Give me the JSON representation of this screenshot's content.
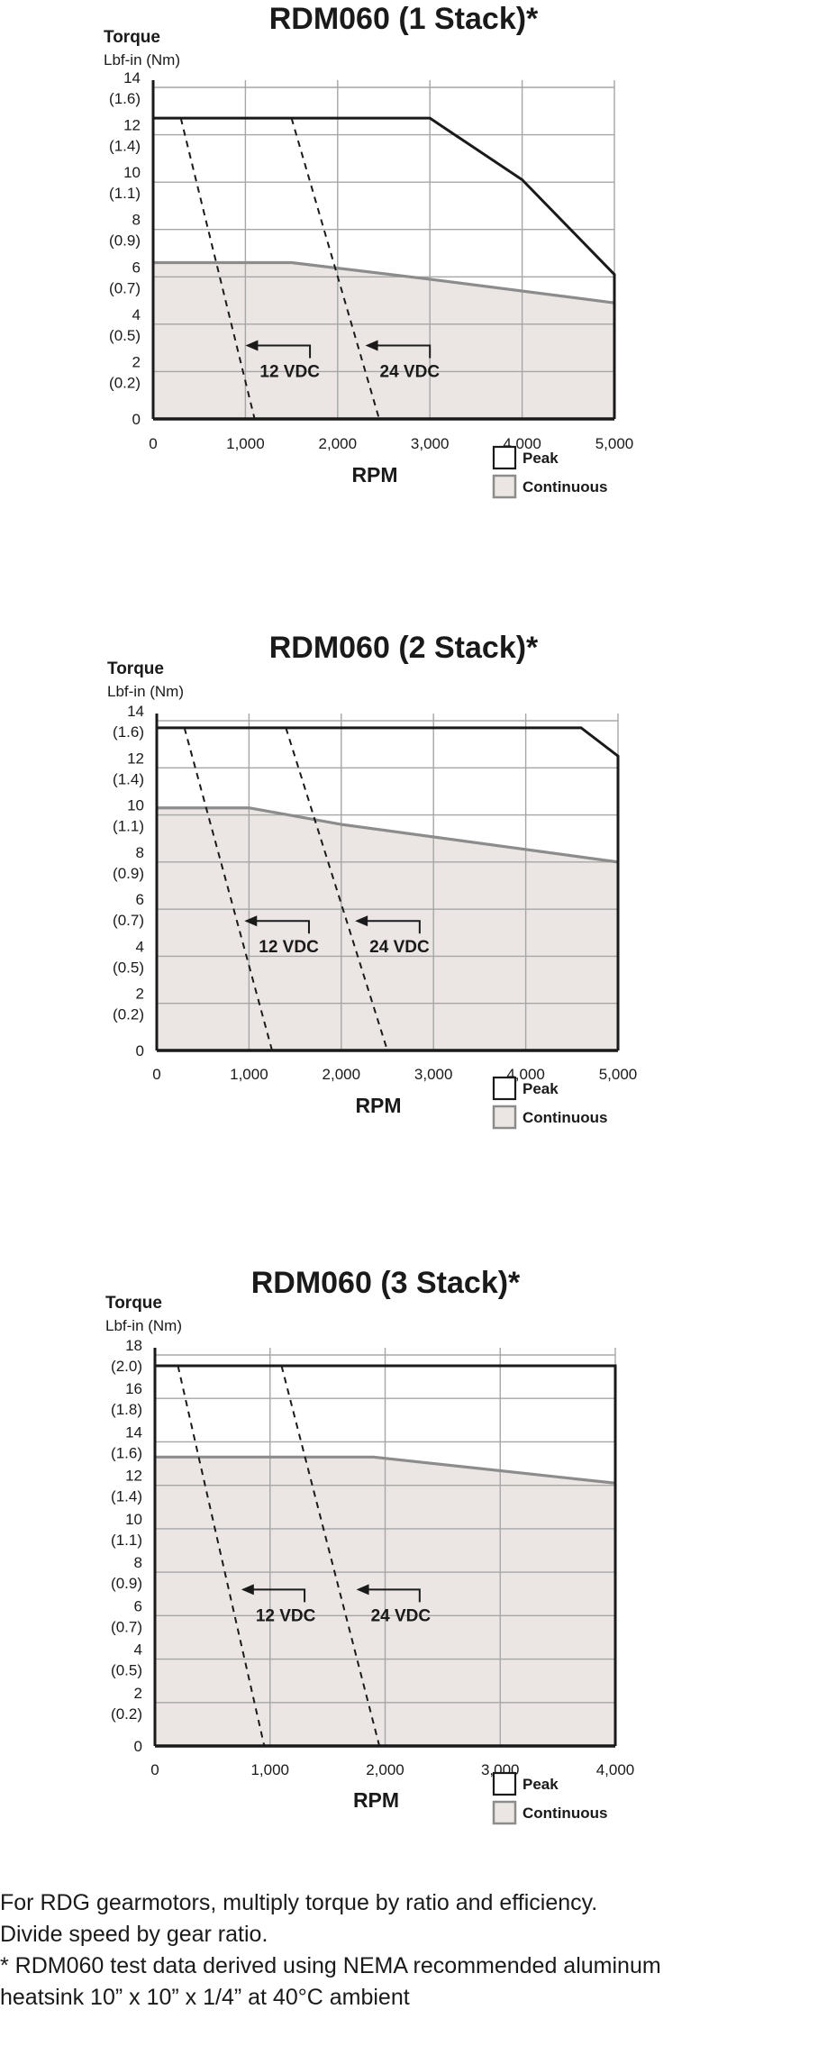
{
  "chart_data": [
    {
      "type": "area",
      "title": "RDM060 (1 Stack)*",
      "ylabel": "Torque",
      "ylabel_unit": "Lbf-in (Nm)",
      "xlabel": "RPM",
      "xlim": [
        0,
        5000
      ],
      "ylim": [
        0,
        14
      ],
      "xticks": [
        "0",
        "1,000",
        "2,000",
        "3,000",
        "4,000",
        "5,000"
      ],
      "xtick_values": [
        0,
        1000,
        2000,
        3000,
        4000,
        5000
      ],
      "yticks": [
        {
          "value": 0,
          "label": "0",
          "sub": ""
        },
        {
          "value": 2,
          "label": "2",
          "sub": "(0.2)"
        },
        {
          "value": 4,
          "label": "4",
          "sub": "(0.5)"
        },
        {
          "value": 6,
          "label": "6",
          "sub": "(0.7)"
        },
        {
          "value": 8,
          "label": "8",
          "sub": "(0.9)"
        },
        {
          "value": 10,
          "label": "10",
          "sub": "(1.1)"
        },
        {
          "value": 12,
          "label": "12",
          "sub": "(1.4)"
        },
        {
          "value": 14,
          "label": "14",
          "sub": "(1.6)"
        }
      ],
      "grid": true,
      "legend_position": "bottom-right",
      "series": [
        {
          "name": "Peak",
          "kind": "line",
          "x": [
            0,
            3000,
            4000,
            5000
          ],
          "y": [
            12.7,
            12.7,
            10.1,
            6.1
          ]
        },
        {
          "name": "Continuous",
          "kind": "area",
          "x": [
            0,
            1500,
            3000,
            5000
          ],
          "y": [
            6.6,
            6.6,
            5.9,
            4.9
          ]
        }
      ],
      "voltage_lines": [
        {
          "label": "12 VDC",
          "x": [
            300,
            1100
          ],
          "y": [
            12.7,
            0
          ],
          "arrow_from": [
            1700,
            3.1
          ],
          "arrow_to": [
            1000,
            3.1
          ]
        },
        {
          "label": "24 VDC",
          "x": [
            1500,
            2450
          ],
          "y": [
            12.7,
            0
          ],
          "arrow_from": [
            3000,
            3.1
          ],
          "arrow_to": [
            2300,
            3.1
          ]
        }
      ]
    },
    {
      "type": "area",
      "title": "RDM060 (2 Stack)*",
      "ylabel": "Torque",
      "ylabel_unit": "Lbf-in (Nm)",
      "xlabel": "RPM",
      "xlim": [
        0,
        5000
      ],
      "ylim": [
        0,
        14
      ],
      "xticks": [
        "0",
        "1,000",
        "2,000",
        "3,000",
        "4,000",
        "5,000"
      ],
      "xtick_values": [
        0,
        1000,
        2000,
        3000,
        4000,
        5000
      ],
      "yticks": [
        {
          "value": 0,
          "label": "0",
          "sub": ""
        },
        {
          "value": 2,
          "label": "2",
          "sub": "(0.2)"
        },
        {
          "value": 4,
          "label": "4",
          "sub": "(0.5)"
        },
        {
          "value": 6,
          "label": "6",
          "sub": "(0.7)"
        },
        {
          "value": 8,
          "label": "8",
          "sub": "(0.9)"
        },
        {
          "value": 10,
          "label": "10",
          "sub": "(1.1)"
        },
        {
          "value": 12,
          "label": "12",
          "sub": "(1.4)"
        },
        {
          "value": 14,
          "label": "14",
          "sub": "(1.6)"
        }
      ],
      "grid": true,
      "legend_position": "bottom-right",
      "series": [
        {
          "name": "Peak",
          "kind": "line",
          "x": [
            0,
            4600,
            5000
          ],
          "y": [
            13.7,
            13.7,
            12.5
          ]
        },
        {
          "name": "Continuous",
          "kind": "area",
          "x": [
            0,
            1000,
            2000,
            5000
          ],
          "y": [
            10.3,
            10.3,
            9.6,
            8.0
          ]
        }
      ],
      "voltage_lines": [
        {
          "label": "12 VDC",
          "x": [
            300,
            1250
          ],
          "y": [
            13.7,
            0
          ],
          "arrow_from": [
            1650,
            5.5
          ],
          "arrow_to": [
            950,
            5.5
          ]
        },
        {
          "label": "24 VDC",
          "x": [
            1400,
            2500
          ],
          "y": [
            13.7,
            0
          ],
          "arrow_from": [
            2850,
            5.5
          ],
          "arrow_to": [
            2150,
            5.5
          ]
        }
      ]
    },
    {
      "type": "area",
      "title": "RDM060 (3 Stack)*",
      "ylabel": "Torque",
      "ylabel_unit": "Lbf-in (Nm)",
      "xlabel": "RPM",
      "xlim": [
        0,
        4000
      ],
      "ylim": [
        0,
        18
      ],
      "xticks": [
        "0",
        "1,000",
        "2,000",
        "3,000",
        "4,000"
      ],
      "xtick_values": [
        0,
        1000,
        2000,
        3000,
        4000
      ],
      "yticks": [
        {
          "value": 0,
          "label": "0",
          "sub": ""
        },
        {
          "value": 2,
          "label": "2",
          "sub": "(0.2)"
        },
        {
          "value": 4,
          "label": "4",
          "sub": "(0.5)"
        },
        {
          "value": 6,
          "label": "6",
          "sub": "(0.7)"
        },
        {
          "value": 8,
          "label": "8",
          "sub": "(0.9)"
        },
        {
          "value": 10,
          "label": "10",
          "sub": "(1.1)"
        },
        {
          "value": 12,
          "label": "12",
          "sub": "(1.4)"
        },
        {
          "value": 14,
          "label": "14",
          "sub": "(1.6)"
        },
        {
          "value": 16,
          "label": "16",
          "sub": "(1.8)"
        },
        {
          "value": 18,
          "label": "18",
          "sub": "(2.0)"
        }
      ],
      "grid": true,
      "legend_position": "bottom-right",
      "series": [
        {
          "name": "Peak",
          "kind": "line",
          "x": [
            0,
            4000
          ],
          "y": [
            17.5,
            17.5
          ]
        },
        {
          "name": "Continuous",
          "kind": "area",
          "x": [
            0,
            1900,
            4000
          ],
          "y": [
            13.3,
            13.3,
            12.1
          ]
        }
      ],
      "voltage_lines": [
        {
          "label": "12 VDC",
          "x": [
            200,
            950
          ],
          "y": [
            17.5,
            0
          ],
          "arrow_from": [
            1300,
            7.2
          ],
          "arrow_to": [
            750,
            7.2
          ]
        },
        {
          "label": "24 VDC",
          "x": [
            1100,
            1950
          ],
          "y": [
            17.5,
            0
          ],
          "arrow_from": [
            2300,
            7.2
          ],
          "arrow_to": [
            1750,
            7.2
          ]
        }
      ]
    }
  ],
  "legend": {
    "peak_label": "Peak",
    "continuous_label": "Continuous"
  },
  "colors": {
    "peak_line": "#1a1a1a",
    "continuous_line": "#8c8c8c",
    "continuous_fill": "#ebe6e4",
    "grid": "#a6a6a6",
    "text": "#1a1a1a"
  },
  "footnote": {
    "line1": "For RDG gearmotors, multiply torque by ratio and efficiency.",
    "line2": "Divide speed by gear ratio.",
    "line3": "* RDM060 test data derived using NEMA recommended aluminum",
    "line4": "heatsink 10” x 10” x 1/4” at 40°C ambient"
  }
}
